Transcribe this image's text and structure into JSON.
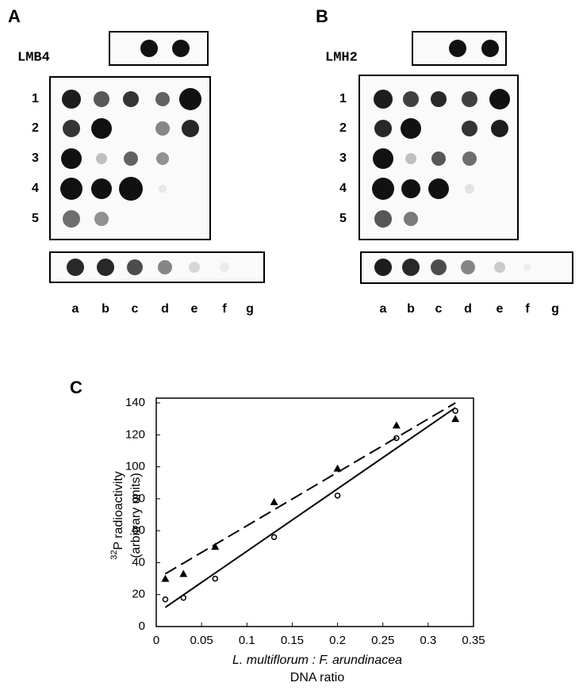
{
  "panels": [
    {
      "label": "A",
      "probe": "LMB4",
      "row_labels": [
        "1",
        "2",
        "3",
        "4",
        "5"
      ],
      "column_labels": [
        "a",
        "b",
        "c",
        "d",
        "e",
        "f",
        "g"
      ]
    },
    {
      "label": "B",
      "probe": "LMH2",
      "row_labels": [
        "1",
        "2",
        "3",
        "4",
        "5"
      ],
      "column_labels": [
        "a",
        "b",
        "c",
        "d",
        "e",
        "f",
        "g"
      ]
    }
  ],
  "chart_data": {
    "type": "scatter",
    "panel_label": "C",
    "y_label_superscript": "32",
    "y_label": "P radioactivity",
    "y_label_2": "(arbitrary units)",
    "x_label": "L. multiflorum : F. arundinacea",
    "x_label_2": "DNA ratio",
    "xlim": [
      0,
      0.35
    ],
    "xticks": [
      0,
      0.05,
      0.1,
      0.15,
      0.2,
      0.25,
      0.3,
      0.35
    ],
    "ylim": [
      0,
      140
    ],
    "yticks": [
      0,
      20,
      40,
      60,
      80,
      100,
      120,
      140
    ],
    "series": [
      {
        "marker": "triangle",
        "color": "#000000",
        "x": [
          0.01,
          0.03,
          0.065,
          0.13,
          0.2,
          0.265,
          0.33
        ],
        "values": [
          30,
          33,
          50,
          78,
          99,
          126,
          130
        ]
      },
      {
        "marker": "circle",
        "color": "#000000",
        "x": [
          0.01,
          0.03,
          0.065,
          0.13,
          0.2,
          0.265,
          0.33
        ],
        "values": [
          17,
          18,
          30,
          56,
          82,
          118,
          135
        ]
      },
      {
        "marker": "dashed-line",
        "color": "#000000",
        "x": [
          0.01,
          0.33
        ],
        "values": [
          33,
          140
        ]
      },
      {
        "marker": "solid-line",
        "color": "#000000",
        "x": [
          0.01,
          0.33
        ],
        "values": [
          12,
          137
        ]
      }
    ]
  }
}
